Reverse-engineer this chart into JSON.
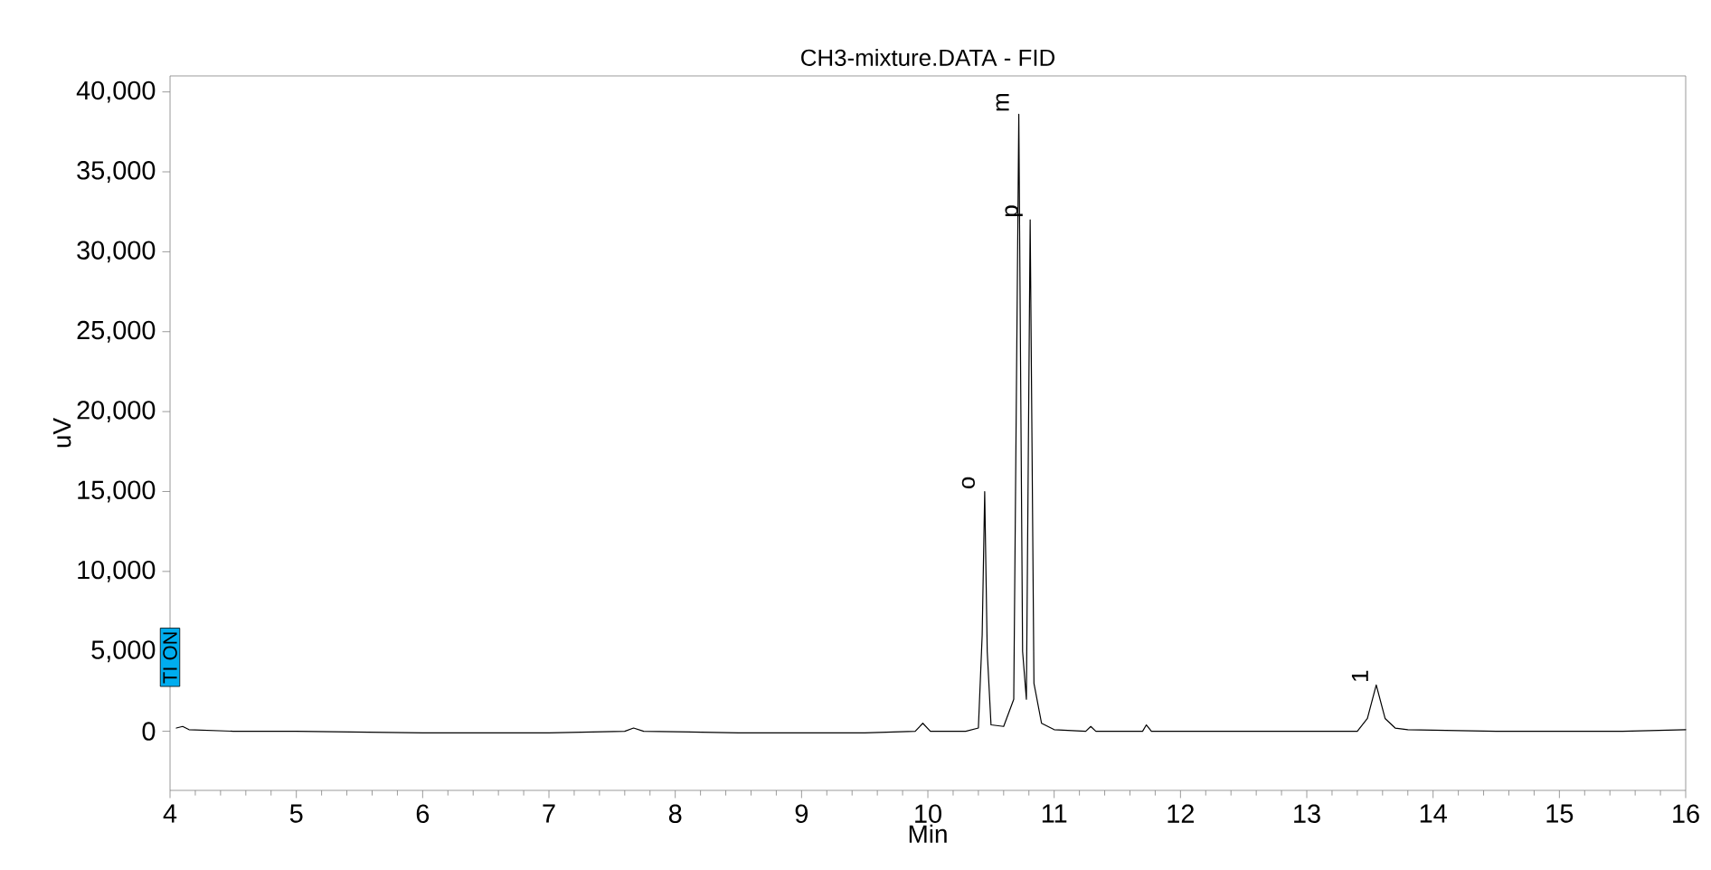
{
  "chart_data": {
    "type": "line",
    "title": "CH3-mixture.DATA - FID",
    "xlabel": "Min",
    "ylabel": "uV",
    "xlim": [
      4,
      16
    ],
    "xticks": [
      4,
      5,
      6,
      7,
      8,
      9,
      10,
      11,
      12,
      13,
      14,
      15,
      16
    ],
    "ylim": [
      -3700,
      41000
    ],
    "yticks": [
      0,
      {
        "value": 5000,
        "label": "5,000"
      },
      {
        "value": 10000,
        "label": "10,000"
      },
      {
        "value": 15000,
        "label": "15,000"
      },
      {
        "value": 20000,
        "label": "20,000"
      },
      {
        "value": 25000,
        "label": "25,000"
      },
      {
        "value": 30000,
        "label": "30,000"
      },
      {
        "value": 35000,
        "label": "35,000"
      },
      {
        "value": 40000,
        "label": "40,000"
      }
    ],
    "grid": false,
    "marker": "none",
    "line_style": "solid",
    "series": [
      {
        "color": "#000000",
        "x": [
          4.05,
          4.1,
          4.15,
          4.5,
          5,
          6,
          7,
          7.6,
          7.67,
          7.75,
          8.5,
          9.5,
          9.9,
          9.96,
          10.02,
          10.3,
          10.4,
          10.43,
          10.45,
          10.47,
          10.5,
          10.6,
          10.68,
          10.72,
          10.75,
          10.78,
          10.81,
          10.84,
          10.9,
          11.0,
          11.25,
          11.29,
          11.33,
          11.7,
          11.73,
          11.77,
          12.5,
          13.4,
          13.48,
          13.55,
          13.62,
          13.7,
          13.8,
          14.5,
          15.5,
          16
        ],
        "values": [
          200,
          300,
          100,
          0,
          0,
          -100,
          -100,
          0,
          200,
          0,
          -100,
          -100,
          0,
          500,
          0,
          0,
          200,
          6000,
          15000,
          5000,
          400,
          300,
          2000,
          38600,
          5000,
          2000,
          32000,
          3000,
          500,
          100,
          0,
          300,
          0,
          0,
          400,
          0,
          0,
          0,
          800,
          2900,
          800,
          200,
          100,
          0,
          0,
          100
        ]
      }
    ],
    "annotations": [
      {
        "text": "o",
        "x": 10.45,
        "y": 15000
      },
      {
        "text": "m",
        "x": 10.72,
        "y": 38600
      },
      {
        "text": "p",
        "x": 10.81,
        "y": 32000
      },
      {
        "text": "1",
        "x": 13.55,
        "y": 2900
      },
      "TI ON"
    ]
  }
}
